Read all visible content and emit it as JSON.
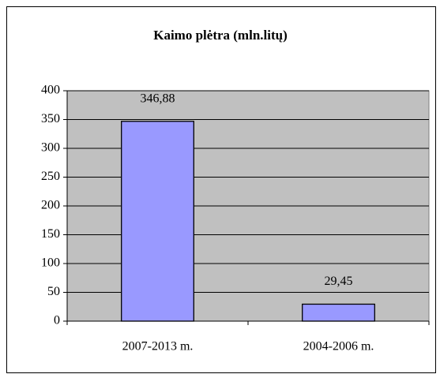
{
  "chart_data": {
    "type": "bar",
    "title": "Kaimo plėtra (mln.litų)",
    "categories": [
      "2007-2013 m.",
      "2004-2006 m."
    ],
    "values": [
      346.88,
      29.45
    ],
    "value_labels": [
      "346,88",
      "29,45"
    ],
    "color": "#9999ff",
    "plot_background": "#c0c0c0",
    "ylim": [
      0,
      400
    ],
    "yticks": [
      0,
      50,
      100,
      150,
      200,
      250,
      300,
      350,
      400
    ],
    "grid": true
  }
}
